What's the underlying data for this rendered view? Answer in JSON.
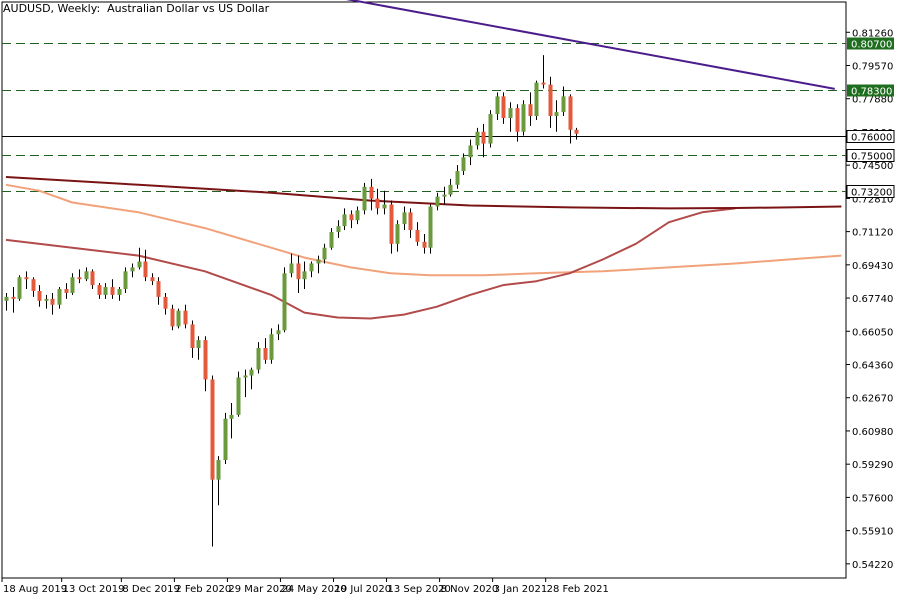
{
  "chart_data": {
    "type": "candlestick",
    "title": "AUDUSD, Weekly:  Australian Dollar vs US Dollar",
    "symbol": "AUDUSD",
    "timeframe": "Weekly",
    "ylim": [
      0.535,
      0.828
    ],
    "y_ticks": [
      "0.81260",
      "0.79570",
      "0.77880",
      "0.76190",
      "0.74500",
      "0.72810",
      "0.71120",
      "0.69430",
      "0.67740",
      "0.66050",
      "0.64360",
      "0.62670",
      "0.60980",
      "0.59290",
      "0.57600",
      "0.55910",
      "0.54220"
    ],
    "x_labels": [
      {
        "i": 0,
        "label": "18 Aug 2019"
      },
      {
        "i": 9,
        "label": "13 Oct 2019"
      },
      {
        "i": 18,
        "label": "8 Dec 2019"
      },
      {
        "i": 26,
        "label": "2 Feb 2020"
      },
      {
        "i": 34,
        "label": "29 Mar 2020"
      },
      {
        "i": 42,
        "label": "24 May 2020"
      },
      {
        "i": 50,
        "label": "19 Jul 2020"
      },
      {
        "i": 58,
        "label": "13 Sep 2020"
      },
      {
        "i": 66,
        "label": "8 Nov 2020"
      },
      {
        "i": 74,
        "label": "3 Jan 2021"
      },
      {
        "i": 82,
        "label": "28 Feb 2021"
      }
    ],
    "colors": {
      "bull": "#6a9a3b",
      "bear": "#e4593b",
      "trendline": "#4b1d8c",
      "ma_200": "#7a1414",
      "ma_100": "#f1a27a",
      "ma_50": "#b24a4a",
      "level_line": "#206020",
      "price_line": "#000000"
    },
    "levels": [
      {
        "value": 0.807,
        "label": "0.80700",
        "style": "dashed",
        "badge": "green"
      },
      {
        "value": 0.783,
        "label": "0.78300",
        "style": "dashed",
        "badge": "green"
      },
      {
        "value": 0.76,
        "label": "0.76000",
        "style": "solid",
        "badge": "white"
      },
      {
        "value": 0.75,
        "label": "0.75000",
        "style": "dashed",
        "badge": "white"
      },
      {
        "value": 0.732,
        "label": "0.73200",
        "style": "dashed",
        "badge": "white"
      }
    ],
    "trendline": [
      {
        "i": 36,
        "y": 0.839
      },
      {
        "i": 125,
        "y": 0.7838
      }
    ],
    "candles": [
      [
        0.676,
        0.68,
        0.671,
        0.678
      ],
      [
        0.678,
        0.683,
        0.67,
        0.677
      ],
      [
        0.677,
        0.689,
        0.676,
        0.688
      ],
      [
        0.688,
        0.691,
        0.682,
        0.687
      ],
      [
        0.687,
        0.688,
        0.678,
        0.681
      ],
      [
        0.681,
        0.684,
        0.673,
        0.676
      ],
      [
        0.676,
        0.679,
        0.672,
        0.677
      ],
      [
        0.677,
        0.68,
        0.669,
        0.674
      ],
      [
        0.674,
        0.683,
        0.672,
        0.682
      ],
      [
        0.682,
        0.685,
        0.677,
        0.68
      ],
      [
        0.68,
        0.69,
        0.679,
        0.688
      ],
      [
        0.688,
        0.692,
        0.685,
        0.687
      ],
      [
        0.687,
        0.693,
        0.686,
        0.691
      ],
      [
        0.691,
        0.692,
        0.682,
        0.684
      ],
      [
        0.684,
        0.685,
        0.677,
        0.679
      ],
      [
        0.679,
        0.685,
        0.677,
        0.683
      ],
      [
        0.683,
        0.687,
        0.677,
        0.679
      ],
      [
        0.679,
        0.683,
        0.676,
        0.682
      ],
      [
        0.682,
        0.693,
        0.68,
        0.691
      ],
      [
        0.691,
        0.695,
        0.688,
        0.693
      ],
      [
        0.693,
        0.703,
        0.692,
        0.696
      ],
      [
        0.696,
        0.702,
        0.686,
        0.688
      ],
      [
        0.688,
        0.69,
        0.684,
        0.686
      ],
      [
        0.686,
        0.688,
        0.674,
        0.678
      ],
      [
        0.678,
        0.68,
        0.669,
        0.672
      ],
      [
        0.672,
        0.674,
        0.661,
        0.663
      ],
      [
        0.663,
        0.672,
        0.662,
        0.671
      ],
      [
        0.671,
        0.674,
        0.662,
        0.664
      ],
      [
        0.664,
        0.666,
        0.647,
        0.652
      ],
      [
        0.652,
        0.658,
        0.646,
        0.656
      ],
      [
        0.656,
        0.658,
        0.63,
        0.636
      ],
      [
        0.636,
        0.638,
        0.551,
        0.585
      ],
      [
        0.585,
        0.597,
        0.572,
        0.595
      ],
      [
        0.595,
        0.619,
        0.593,
        0.616
      ],
      [
        0.616,
        0.624,
        0.606,
        0.618
      ],
      [
        0.618,
        0.64,
        0.617,
        0.637
      ],
      [
        0.637,
        0.641,
        0.627,
        0.638
      ],
      [
        0.638,
        0.642,
        0.631,
        0.641
      ],
      [
        0.641,
        0.655,
        0.639,
        0.652
      ],
      [
        0.652,
        0.657,
        0.644,
        0.646
      ],
      [
        0.646,
        0.662,
        0.644,
        0.659
      ],
      [
        0.659,
        0.664,
        0.656,
        0.661
      ],
      [
        0.661,
        0.693,
        0.66,
        0.69
      ],
      [
        0.69,
        0.7,
        0.688,
        0.695
      ],
      [
        0.695,
        0.699,
        0.68,
        0.687
      ],
      [
        0.687,
        0.696,
        0.682,
        0.691
      ],
      [
        0.691,
        0.696,
        0.688,
        0.695
      ],
      [
        0.695,
        0.699,
        0.69,
        0.697
      ],
      [
        0.697,
        0.705,
        0.695,
        0.703
      ],
      [
        0.703,
        0.713,
        0.702,
        0.711
      ],
      [
        0.711,
        0.717,
        0.708,
        0.714
      ],
      [
        0.714,
        0.723,
        0.712,
        0.72
      ],
      [
        0.72,
        0.722,
        0.713,
        0.717
      ],
      [
        0.717,
        0.724,
        0.715,
        0.722
      ],
      [
        0.722,
        0.736,
        0.72,
        0.734
      ],
      [
        0.734,
        0.738,
        0.722,
        0.728
      ],
      [
        0.728,
        0.733,
        0.72,
        0.723
      ],
      [
        0.723,
        0.732,
        0.72,
        0.725
      ],
      [
        0.725,
        0.727,
        0.7,
        0.705
      ],
      [
        0.705,
        0.717,
        0.701,
        0.715
      ],
      [
        0.715,
        0.724,
        0.712,
        0.721
      ],
      [
        0.721,
        0.723,
        0.708,
        0.712
      ],
      [
        0.712,
        0.716,
        0.704,
        0.706
      ],
      [
        0.706,
        0.71,
        0.7,
        0.703
      ],
      [
        0.703,
        0.725,
        0.7,
        0.724
      ],
      [
        0.724,
        0.731,
        0.722,
        0.729
      ],
      [
        0.729,
        0.734,
        0.725,
        0.73
      ],
      [
        0.73,
        0.738,
        0.729,
        0.735
      ],
      [
        0.735,
        0.745,
        0.733,
        0.742
      ],
      [
        0.742,
        0.751,
        0.74,
        0.749
      ],
      [
        0.749,
        0.758,
        0.745,
        0.755
      ],
      [
        0.755,
        0.764,
        0.753,
        0.762
      ],
      [
        0.762,
        0.766,
        0.749,
        0.756
      ],
      [
        0.756,
        0.773,
        0.754,
        0.771
      ],
      [
        0.771,
        0.782,
        0.768,
        0.78
      ],
      [
        0.78,
        0.782,
        0.766,
        0.769
      ],
      [
        0.769,
        0.777,
        0.762,
        0.774
      ],
      [
        0.774,
        0.776,
        0.757,
        0.762
      ],
      [
        0.762,
        0.778,
        0.76,
        0.776
      ],
      [
        0.776,
        0.782,
        0.765,
        0.77
      ],
      [
        0.77,
        0.788,
        0.768,
        0.787
      ],
      [
        0.787,
        0.801,
        0.784,
        0.786
      ],
      [
        0.786,
        0.79,
        0.764,
        0.77
      ],
      [
        0.77,
        0.778,
        0.762,
        0.772
      ],
      [
        0.772,
        0.785,
        0.77,
        0.78
      ],
      [
        0.78,
        0.781,
        0.756,
        0.763
      ],
      [
        0.763,
        0.764,
        0.758,
        0.761
      ]
    ],
    "ma_200": [
      [
        0,
        0.739
      ],
      [
        20,
        0.735
      ],
      [
        40,
        0.731
      ],
      [
        55,
        0.727
      ],
      [
        70,
        0.7245
      ],
      [
        85,
        0.7235
      ],
      [
        100,
        0.723
      ],
      [
        110,
        0.7232
      ],
      [
        118,
        0.7235
      ],
      [
        126,
        0.724
      ]
    ],
    "ma_100": [
      [
        0,
        0.735
      ],
      [
        5,
        0.732
      ],
      [
        10,
        0.726
      ],
      [
        20,
        0.721
      ],
      [
        30,
        0.713
      ],
      [
        40,
        0.703
      ],
      [
        45,
        0.698
      ],
      [
        52,
        0.693
      ],
      [
        58,
        0.69
      ],
      [
        64,
        0.689
      ],
      [
        72,
        0.689
      ],
      [
        80,
        0.69
      ],
      [
        90,
        0.691
      ],
      [
        100,
        0.693
      ],
      [
        110,
        0.695
      ],
      [
        118,
        0.697
      ],
      [
        126,
        0.699
      ]
    ],
    "ma_50": [
      [
        0,
        0.707
      ],
      [
        10,
        0.703
      ],
      [
        20,
        0.699
      ],
      [
        30,
        0.691
      ],
      [
        40,
        0.679
      ],
      [
        45,
        0.67
      ],
      [
        50,
        0.6675
      ],
      [
        55,
        0.667
      ],
      [
        60,
        0.669
      ],
      [
        65,
        0.673
      ],
      [
        70,
        0.679
      ],
      [
        75,
        0.684
      ],
      [
        80,
        0.686
      ],
      [
        85,
        0.69
      ],
      [
        90,
        0.697
      ],
      [
        95,
        0.705
      ],
      [
        100,
        0.716
      ],
      [
        105,
        0.721
      ],
      [
        110,
        0.723
      ]
    ]
  }
}
